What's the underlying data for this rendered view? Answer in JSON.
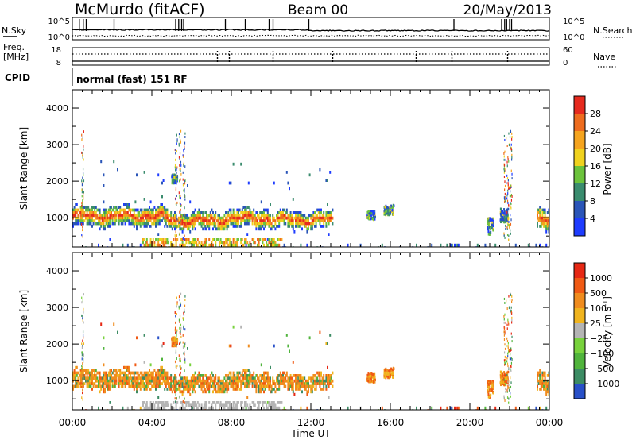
{
  "header": {
    "station": "McMurdo (fitACF)",
    "beam": "Beam 00",
    "date": "20/May/2013"
  },
  "noise_panel": {
    "left_label": "N.Sky",
    "right_label": "N.Search",
    "left_ticks": [
      "10^5",
      "10^0"
    ],
    "right_ticks": [
      "10^5",
      "10^0"
    ]
  },
  "freq_panel": {
    "left_label_1": "Freq.",
    "left_label_2": "[MHz]",
    "left_ticks": [
      "18",
      "8"
    ],
    "right_label": "Nave",
    "right_ticks": [
      "60",
      "0"
    ]
  },
  "cpid": {
    "label": "CPID",
    "value": "normal (fast) 151 RF"
  },
  "chart_data": [
    {
      "type": "heatmap",
      "name": "power",
      "ylabel": "Slant Range [km]",
      "y_ticks": [
        "1000",
        "2000",
        "3000",
        "4000"
      ],
      "ylim": [
        200,
        4500
      ],
      "xlim": [
        0,
        24
      ],
      "x_ticks": [
        "00:00",
        "04:00",
        "08:00",
        "12:00",
        "16:00",
        "20:00",
        "00:00"
      ],
      "colorbar": {
        "label": "Power [dB]",
        "tick_labels": [
          "4",
          "8",
          "12",
          "16",
          "20",
          "24",
          "28"
        ],
        "colors": [
          "#1e3cff",
          "#2a55b8",
          "#3a8c6e",
          "#6cc33c",
          "#f0d21e",
          "#f5a41e",
          "#ee6c1e",
          "#e62a1e"
        ]
      }
    },
    {
      "type": "heatmap",
      "name": "velocity",
      "ylabel": "Slant Range [km]",
      "y_ticks": [
        "1000",
        "2000",
        "3000",
        "4000"
      ],
      "ylim": [
        200,
        4500
      ],
      "xlim": [
        0,
        24
      ],
      "x_ticks": [
        "00:00",
        "04:00",
        "08:00",
        "12:00",
        "16:00",
        "20:00",
        "00:00"
      ],
      "xlabel": "Time UT",
      "colorbar": {
        "label_main": "Velocity [m s",
        "label_sup": "-1",
        "label_end": "]",
        "tick_labels": [
          "1000",
          "500",
          "100",
          "25",
          "−25",
          "−100",
          "−500",
          "−1000"
        ],
        "colors": [
          "#2850c8",
          "#3c8c64",
          "#50b43c",
          "#78d23c",
          "#b4b4b4",
          "#f0b41e",
          "#f08c1e",
          "#f05a14",
          "#e62814"
        ]
      }
    }
  ]
}
